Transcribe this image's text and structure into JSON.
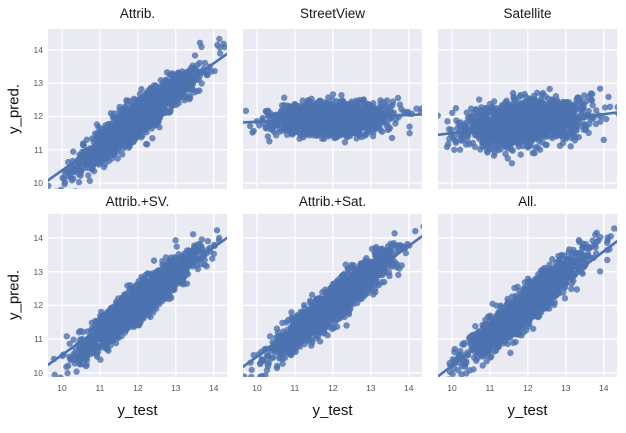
{
  "chart_data": {
    "type": "scatter",
    "xlabel": "y_test",
    "ylabel": "y_pred.",
    "grid": true,
    "legend": null,
    "style": {
      "figure_bg": "#ffffff",
      "panel_bg": "#eaeaf2",
      "grid_color": "#ffffff",
      "grid_width": 1.3,
      "point_color": "#4c72b0",
      "point_alpha": 0.8,
      "point_radius": 3.2,
      "line_color": "#4c72b0",
      "line_width": 2.6,
      "title_color": "#171717",
      "tick_color": "#555555"
    },
    "panels": [
      {
        "title": "Attrib.",
        "xlim": [
          9.63,
          14.35
        ],
        "ylim": [
          9.82,
          14.63
        ],
        "xticks": [
          10,
          11,
          12,
          13,
          14
        ],
        "yticks": [
          10,
          11,
          12,
          13,
          14
        ],
        "show_ytick_labels": true,
        "show_xtick_labels": false,
        "n_points": 1700,
        "seed": 11,
        "cluster": {
          "cx": 11.95,
          "cy": 11.9,
          "sx": 0.74,
          "sy": 0.7,
          "rho": 0.92
        },
        "regression_line": {
          "x": [
            9.63,
            14.35
          ],
          "y": [
            10.08,
            13.88
          ]
        }
      },
      {
        "title": "StreetView",
        "xlim": [
          9.63,
          14.35
        ],
        "ylim": [
          9.82,
          14.63
        ],
        "xticks": [
          10,
          11,
          12,
          13,
          14
        ],
        "yticks": [
          10,
          11,
          12,
          13,
          14
        ],
        "show_ytick_labels": false,
        "show_xtick_labels": false,
        "n_points": 1700,
        "seed": 22,
        "cluster": {
          "cx": 11.95,
          "cy": 11.93,
          "sx": 0.72,
          "sy": 0.23,
          "rho": 0.12
        },
        "regression_line": {
          "x": [
            9.63,
            14.35
          ],
          "y": [
            11.82,
            12.06
          ]
        }
      },
      {
        "title": "Satellite",
        "xlim": [
          9.63,
          14.35
        ],
        "ylim": [
          9.82,
          14.63
        ],
        "xticks": [
          10,
          11,
          12,
          13,
          14
        ],
        "yticks": [
          10,
          11,
          12,
          13,
          14
        ],
        "show_ytick_labels": false,
        "show_xtick_labels": false,
        "n_points": 1700,
        "seed": 33,
        "cluster": {
          "cx": 11.95,
          "cy": 11.82,
          "sx": 0.76,
          "sy": 0.34,
          "rho": 0.32
        },
        "regression_line": {
          "x": [
            9.63,
            14.35
          ],
          "y": [
            11.45,
            12.12
          ]
        }
      },
      {
        "title": "Attrib.+SV.",
        "xlim": [
          9.63,
          14.35
        ],
        "ylim": [
          9.88,
          14.71
        ],
        "xticks": [
          10,
          11,
          12,
          13,
          14
        ],
        "yticks": [
          10,
          11,
          12,
          13,
          14
        ],
        "show_ytick_labels": true,
        "show_xtick_labels": true,
        "n_points": 1700,
        "seed": 44,
        "cluster": {
          "cx": 11.95,
          "cy": 12.0,
          "sx": 0.76,
          "sy": 0.74,
          "rho": 0.93
        },
        "regression_line": {
          "x": [
            9.63,
            14.35
          ],
          "y": [
            10.24,
            14.0
          ]
        }
      },
      {
        "title": "Attrib.+Sat.",
        "xlim": [
          9.63,
          14.35
        ],
        "ylim": [
          9.88,
          14.71
        ],
        "xticks": [
          10,
          11,
          12,
          13,
          14
        ],
        "yticks": [
          10,
          11,
          12,
          13,
          14
        ],
        "show_ytick_labels": false,
        "show_xtick_labels": true,
        "n_points": 1700,
        "seed": 55,
        "cluster": {
          "cx": 11.95,
          "cy": 12.0,
          "sx": 0.75,
          "sy": 0.73,
          "rho": 0.93
        },
        "regression_line": {
          "x": [
            9.63,
            14.35
          ],
          "y": [
            10.18,
            14.05
          ]
        }
      },
      {
        "title": "All.",
        "xlim": [
          9.63,
          14.35
        ],
        "ylim": [
          9.88,
          14.71
        ],
        "xticks": [
          10,
          11,
          12,
          13,
          14
        ],
        "yticks": [
          10,
          11,
          12,
          13,
          14
        ],
        "show_ytick_labels": false,
        "show_xtick_labels": true,
        "n_points": 1700,
        "seed": 66,
        "cluster": {
          "cx": 11.95,
          "cy": 12.0,
          "sx": 0.74,
          "sy": 0.74,
          "rho": 0.93
        },
        "regression_line": {
          "x": [
            9.63,
            14.35
          ],
          "y": [
            9.9,
            13.9
          ]
        }
      }
    ]
  }
}
